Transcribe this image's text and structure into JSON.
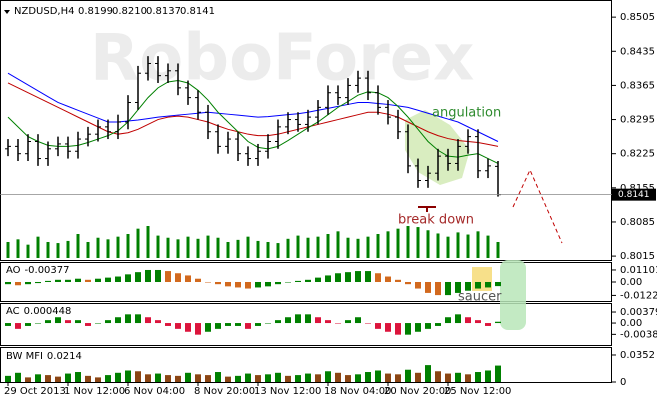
{
  "header": {
    "symbol": "NZDUSD,H4",
    "ohlc": [
      "0.8199",
      "0.8210",
      "0.8137",
      "0.8141"
    ]
  },
  "watermark": "RoboForex",
  "chart_data": [
    {
      "type": "ohlc",
      "color": "#000000",
      "open": [
        0.8235,
        0.824,
        0.8225,
        0.825,
        0.8215,
        0.8235,
        0.8245,
        0.823,
        0.8255,
        0.8265,
        0.828,
        0.827,
        0.829,
        0.833,
        0.839,
        0.841,
        0.8385,
        0.8395,
        0.836,
        0.834,
        0.831,
        0.827,
        0.824,
        0.8255,
        0.8225,
        0.8215,
        0.823,
        0.825,
        0.828,
        0.8295,
        0.8285,
        0.83,
        0.832,
        0.835,
        0.834,
        0.8365,
        0.838,
        0.835,
        0.832,
        0.83,
        0.827,
        0.82,
        0.817,
        0.8185,
        0.822,
        0.8205,
        0.824,
        0.826,
        0.819,
        0.8199
      ],
      "high": [
        0.8255,
        0.8255,
        0.8265,
        0.8265,
        0.825,
        0.826,
        0.826,
        0.827,
        0.828,
        0.8295,
        0.8295,
        0.8305,
        0.8345,
        0.8405,
        0.8425,
        0.8425,
        0.841,
        0.841,
        0.8375,
        0.8355,
        0.8325,
        0.8285,
        0.827,
        0.827,
        0.824,
        0.8245,
        0.8265,
        0.8295,
        0.831,
        0.831,
        0.8315,
        0.8335,
        0.8365,
        0.8365,
        0.838,
        0.8395,
        0.8395,
        0.8365,
        0.8335,
        0.8315,
        0.8285,
        0.8215,
        0.82,
        0.8235,
        0.8235,
        0.8255,
        0.8275,
        0.8275,
        0.8215,
        0.821
      ],
      "low": [
        0.822,
        0.821,
        0.821,
        0.82,
        0.82,
        0.822,
        0.8215,
        0.8215,
        0.824,
        0.825,
        0.8255,
        0.8255,
        0.8275,
        0.8315,
        0.8375,
        0.837,
        0.837,
        0.8345,
        0.8325,
        0.8295,
        0.8255,
        0.8225,
        0.8225,
        0.821,
        0.82,
        0.82,
        0.8215,
        0.8235,
        0.8265,
        0.827,
        0.827,
        0.8285,
        0.8305,
        0.8325,
        0.8325,
        0.835,
        0.8335,
        0.8305,
        0.8285,
        0.8255,
        0.8185,
        0.8155,
        0.8155,
        0.817,
        0.819,
        0.819,
        0.8225,
        0.8175,
        0.8175,
        0.8137
      ],
      "close": [
        0.824,
        0.8225,
        0.825,
        0.8215,
        0.8235,
        0.8245,
        0.823,
        0.8255,
        0.8265,
        0.828,
        0.827,
        0.829,
        0.833,
        0.839,
        0.841,
        0.8385,
        0.8395,
        0.836,
        0.834,
        0.831,
        0.827,
        0.824,
        0.8255,
        0.8225,
        0.8215,
        0.823,
        0.825,
        0.828,
        0.8295,
        0.8285,
        0.83,
        0.832,
        0.835,
        0.834,
        0.8365,
        0.838,
        0.835,
        0.832,
        0.83,
        0.827,
        0.82,
        0.817,
        0.8185,
        0.822,
        0.8205,
        0.824,
        0.826,
        0.819,
        0.82,
        0.8141
      ],
      "lines": [
        {
          "color": "#0000ff",
          "values": [
            0.839,
            0.8378,
            0.8366,
            0.8354,
            0.8342,
            0.833,
            0.8322,
            0.8314,
            0.8306,
            0.8298,
            0.829,
            0.829,
            0.8292,
            0.8294,
            0.8297,
            0.83,
            0.8302,
            0.8304,
            0.8306,
            0.8308,
            0.831,
            0.8308,
            0.8306,
            0.8304,
            0.8302,
            0.83,
            0.8301,
            0.8303,
            0.8305,
            0.8307,
            0.831,
            0.8314,
            0.8318,
            0.8322,
            0.8326,
            0.833,
            0.833,
            0.8328,
            0.8326,
            0.8323,
            0.832,
            0.8314,
            0.8308,
            0.8302,
            0.8296,
            0.829,
            0.828,
            0.827,
            0.826,
            0.825
          ]
        },
        {
          "color": "#c00000",
          "values": [
            0.837,
            0.836,
            0.835,
            0.834,
            0.833,
            0.832,
            0.831,
            0.83,
            0.829,
            0.828,
            0.827,
            0.8265,
            0.8268,
            0.8275,
            0.8285,
            0.8295,
            0.83,
            0.8302,
            0.83,
            0.8295,
            0.829,
            0.8282,
            0.8275,
            0.827,
            0.8265,
            0.8262,
            0.8262,
            0.8265,
            0.827,
            0.8275,
            0.828,
            0.8285,
            0.829,
            0.8295,
            0.83,
            0.8305,
            0.831,
            0.831,
            0.8306,
            0.83,
            0.829,
            0.828,
            0.827,
            0.8262,
            0.8256,
            0.8252,
            0.825,
            0.8248,
            0.8244,
            0.824
          ]
        },
        {
          "color": "#008000",
          "values": [
            0.83,
            0.828,
            0.826,
            0.825,
            0.8242,
            0.824,
            0.824,
            0.8242,
            0.8248,
            0.8255,
            0.8262,
            0.8272,
            0.829,
            0.8315,
            0.834,
            0.836,
            0.8372,
            0.8375,
            0.837,
            0.8355,
            0.8335,
            0.831,
            0.829,
            0.827,
            0.825,
            0.8238,
            0.8235,
            0.824,
            0.8252,
            0.8265,
            0.8278,
            0.829,
            0.8305,
            0.832,
            0.8332,
            0.8345,
            0.8352,
            0.835,
            0.834,
            0.8322,
            0.83,
            0.8275,
            0.825,
            0.8232,
            0.822,
            0.8218,
            0.8222,
            0.8225,
            0.8215,
            0.8205
          ]
        }
      ],
      "volume": [
        30,
        35,
        25,
        40,
        30,
        28,
        32,
        45,
        30,
        38,
        35,
        40,
        45,
        55,
        60,
        42,
        38,
        35,
        40,
        36,
        42,
        38,
        30,
        34,
        40,
        32,
        30,
        28,
        36,
        42,
        38,
        40,
        45,
        50,
        38,
        36,
        40,
        45,
        50,
        55,
        60,
        58,
        52,
        46,
        40,
        48,
        44,
        50,
        42,
        30
      ],
      "volume_color": "#008000",
      "ylim": [
        0.8007,
        0.8534
      ],
      "yticks": [
        0.8505,
        0.8435,
        0.8365,
        0.8295,
        0.8225,
        0.8155,
        0.8085,
        0.8015
      ],
      "annotations": [
        "angulation",
        "break down"
      ]
    },
    {
      "type": "ao",
      "title": "AO",
      "up_color": "#008000",
      "down_color": "#d2691e",
      "values": [
        -0.002,
        -0.003,
        -0.002,
        -0.001,
        0.001,
        0.002,
        0.002,
        0.003,
        0.002,
        0.003,
        0.004,
        0.005,
        0.007,
        0.009,
        0.011,
        0.011,
        0.01,
        0.008,
        0.006,
        0.003,
        0.0,
        -0.002,
        -0.004,
        -0.005,
        -0.006,
        -0.005,
        -0.004,
        -0.002,
        0.0,
        0.001,
        0.002,
        0.004,
        0.006,
        0.008,
        0.009,
        0.01,
        0.01,
        0.008,
        0.005,
        0.002,
        -0.002,
        -0.006,
        -0.01,
        -0.012,
        -0.012,
        -0.01,
        -0.008,
        -0.006,
        -0.005,
        -0.00377
      ],
      "ylim": [
        -0.0174,
        0.0183
      ],
      "yticks": [
        0.01101,
        {
          "value": 0,
          "label": "0.00"
        },
        -0.01228
      ],
      "annotations": [
        "saucer"
      ]
    },
    {
      "type": "ac",
      "title": "AC",
      "up_color": "#008000",
      "down_color": "#dc143c",
      "values": [
        -0.001,
        -0.002,
        -0.001,
        0.0,
        0.001,
        0.002,
        0.001,
        0.001,
        -0.001,
        0.0,
        0.001,
        0.002,
        0.003,
        0.003,
        0.002,
        0.001,
        -0.001,
        -0.002,
        -0.003,
        -0.004,
        -0.003,
        -0.002,
        -0.001,
        -0.001,
        -0.002,
        -0.001,
        0.0,
        0.001,
        0.002,
        0.003,
        0.003,
        0.002,
        0.001,
        0.0,
        0.001,
        0.002,
        0.0,
        -0.002,
        -0.003,
        -0.004,
        -0.004,
        -0.003,
        -0.002,
        -0.001,
        0.002,
        0.003,
        0.002,
        0.001,
        -0.001,
        0.000448
      ],
      "ylim": [
        -0.0079,
        0.0069
      ],
      "yticks": [
        0.003795,
        {
          "value": 0,
          "label": "0.00"
        },
        -0.00389
      ]
    },
    {
      "type": "mfi",
      "title": "BW MFI",
      "up_color": "#008000",
      "down_color": "#8b4513",
      "values": [
        0.008,
        0.012,
        0.006,
        0.01,
        0.009,
        0.007,
        0.011,
        0.013,
        0.008,
        0.006,
        0.009,
        0.012,
        0.015,
        0.014,
        0.01,
        0.011,
        0.009,
        0.008,
        0.012,
        0.01,
        0.009,
        0.013,
        0.007,
        0.008,
        0.011,
        0.009,
        0.01,
        0.012,
        0.008,
        0.009,
        0.011,
        0.01,
        0.014,
        0.012,
        0.009,
        0.01,
        0.013,
        0.015,
        0.011,
        0.01,
        0.016,
        0.012,
        0.022,
        0.014,
        0.011,
        0.012,
        0.01,
        0.013,
        0.015,
        0.0214
      ],
      "ylim": [
        0,
        0.0443
      ],
      "yticks": [
        0.0352,
        0
      ],
      "categories": [
        "29 Oct 2013",
        null,
        null,
        null,
        null,
        null,
        "1 Nov 12:00",
        null,
        null,
        null,
        null,
        null,
        "6 Nov 04:00",
        null,
        null,
        null,
        null,
        null,
        null,
        "8 Nov 20:00",
        null,
        null,
        null,
        null,
        null,
        "13 Nov 12:00",
        null,
        null,
        null,
        null,
        null,
        null,
        "18 Nov 04:00",
        null,
        null,
        null,
        null,
        null,
        "20 Nov 20:00",
        null,
        null,
        null,
        null,
        null,
        "25 Nov 12:00",
        null,
        null,
        null,
        null,
        null
      ]
    }
  ]
}
